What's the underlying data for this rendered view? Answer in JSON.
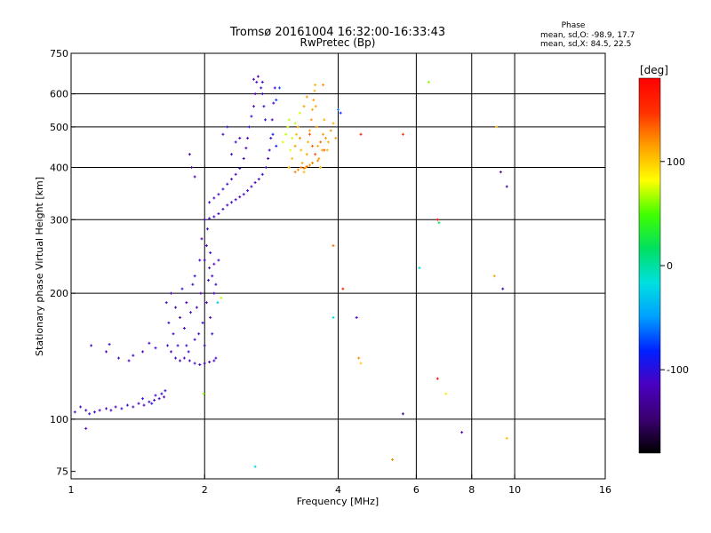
{
  "chart_data": {
    "type": "scatter",
    "title": "Tromsø 20161004 16:32:00-16:33:43",
    "subtitle": "RwPretec (Bp)",
    "xlabel": "Frequency [MHz]",
    "ylabel": "Stationary phase Virtual Height [km]",
    "x_scale": "log",
    "y_scale": "log",
    "xlim": [
      1,
      16
    ],
    "ylim": [
      72,
      750
    ],
    "x_ticks": [
      1,
      2,
      4,
      6,
      8,
      10,
      16
    ],
    "y_ticks": [
      75,
      100,
      200,
      300,
      400,
      500,
      600,
      750
    ],
    "grid_x": [
      1,
      2,
      4,
      6,
      8,
      10
    ],
    "grid_y": [
      100,
      200,
      300,
      400,
      500,
      600
    ],
    "grid": true,
    "stats": {
      "title": "Phase",
      "o_line": "mean, sd,O: -98.9, 17.7",
      "x_line": "mean, sd,X:  84.5, 22.5"
    },
    "colorbar": {
      "label": "[deg]",
      "range": [
        -180,
        180
      ],
      "ticks": [
        100,
        0,
        -100
      ],
      "colors": [
        "#000000",
        "#3a0070",
        "#4b00c0",
        "#0020ff",
        "#00a0ff",
        "#00e0e0",
        "#00e060",
        "#40ff00",
        "#ffff00",
        "#ffa000",
        "#ff3000",
        "#ff0000"
      ]
    },
    "series": [
      {
        "points": [
          [
            1.02,
            104,
            -115
          ],
          [
            1.05,
            107,
            -110
          ],
          [
            1.08,
            105,
            -120
          ],
          [
            1.1,
            103,
            -105
          ],
          [
            1.13,
            104,
            -112
          ],
          [
            1.16,
            105,
            -118
          ],
          [
            1.2,
            106,
            -108
          ],
          [
            1.23,
            105,
            -115
          ],
          [
            1.26,
            107,
            -120
          ],
          [
            1.3,
            106,
            -110
          ],
          [
            1.34,
            108,
            -105
          ],
          [
            1.38,
            107,
            -115
          ],
          [
            1.42,
            109,
            -112
          ],
          [
            1.46,
            108,
            -118
          ],
          [
            1.5,
            110,
            -108
          ],
          [
            1.54,
            111,
            -115
          ],
          [
            1.58,
            112,
            -110
          ],
          [
            1.62,
            113,
            -120
          ],
          [
            1.55,
            114,
            -112
          ],
          [
            1.6,
            115,
            -105
          ],
          [
            1.63,
            117,
            -100
          ],
          [
            1.08,
            95,
            -115
          ],
          [
            1.45,
            112,
            -102
          ],
          [
            1.52,
            109,
            -100
          ],
          [
            1.11,
            150,
            -110
          ],
          [
            1.2,
            145,
            -115
          ],
          [
            1.22,
            151,
            -108
          ],
          [
            1.28,
            140,
            -112
          ],
          [
            1.35,
            138,
            -118
          ],
          [
            1.38,
            142,
            -110
          ],
          [
            1.45,
            145,
            -115
          ],
          [
            1.5,
            152,
            -108
          ],
          [
            1.55,
            148,
            -112
          ],
          [
            1.64,
            190,
            -110
          ],
          [
            1.66,
            170,
            -108
          ],
          [
            1.68,
            200,
            -115
          ],
          [
            1.7,
            160,
            -112
          ],
          [
            1.72,
            185,
            -120
          ],
          [
            1.74,
            150,
            -110
          ],
          [
            1.76,
            175,
            -115
          ],
          [
            1.78,
            205,
            -108
          ],
          [
            1.8,
            165,
            -112
          ],
          [
            1.82,
            190,
            -118
          ],
          [
            1.84,
            145,
            -110
          ],
          [
            1.86,
            180,
            -115
          ],
          [
            1.88,
            210,
            -108
          ],
          [
            1.9,
            155,
            -112
          ],
          [
            1.92,
            185,
            -118
          ],
          [
            1.94,
            160,
            -110
          ],
          [
            1.96,
            200,
            -115
          ],
          [
            1.98,
            170,
            -108
          ],
          [
            2.0,
            150,
            -112
          ],
          [
            2.02,
            190,
            -118
          ],
          [
            2.04,
            215,
            -110
          ],
          [
            2.06,
            175,
            -115
          ],
          [
            2.08,
            160,
            -108
          ],
          [
            2.1,
            200,
            -112
          ],
          [
            2.12,
            140,
            -110
          ],
          [
            2.05,
            230,
            -115
          ],
          [
            2.0,
            240,
            -108
          ],
          [
            2.02,
            260,
            -112
          ],
          [
            1.97,
            270,
            -120
          ],
          [
            2.03,
            285,
            -110
          ],
          [
            1.95,
            240,
            -115
          ],
          [
            1.9,
            220,
            -108
          ],
          [
            1.85,
            138,
            -112
          ],
          [
            1.9,
            136,
            -108
          ],
          [
            1.95,
            135,
            -115
          ],
          [
            2.0,
            136,
            -110
          ],
          [
            2.05,
            137,
            -112
          ],
          [
            2.1,
            138,
            -115
          ],
          [
            1.99,
            115,
            60
          ],
          [
            2.14,
            190,
            -30
          ],
          [
            2.18,
            195,
            70
          ],
          [
            2.0,
            300,
            -112
          ],
          [
            2.05,
            302,
            -108
          ],
          [
            2.1,
            305,
            -115
          ],
          [
            2.15,
            310,
            -112
          ],
          [
            2.2,
            318,
            -110
          ],
          [
            2.25,
            325,
            -115
          ],
          [
            2.3,
            330,
            -108
          ],
          [
            2.35,
            335,
            -112
          ],
          [
            2.4,
            340,
            -118
          ],
          [
            2.45,
            345,
            -110
          ],
          [
            2.5,
            352,
            -108
          ],
          [
            2.55,
            360,
            -112
          ],
          [
            2.6,
            368,
            -115
          ],
          [
            2.65,
            375,
            -110
          ],
          [
            2.7,
            385,
            -108
          ],
          [
            2.75,
            400,
            -112
          ],
          [
            2.78,
            420,
            -115
          ],
          [
            2.8,
            440,
            -110
          ],
          [
            2.82,
            470,
            -108
          ],
          [
            2.84,
            520,
            -112
          ],
          [
            2.86,
            570,
            -115
          ],
          [
            2.88,
            620,
            -110
          ],
          [
            2.05,
            330,
            -110
          ],
          [
            2.1,
            338,
            -115
          ],
          [
            2.15,
            345,
            -112
          ],
          [
            2.2,
            355,
            -108
          ],
          [
            2.25,
            365,
            -110
          ],
          [
            2.3,
            375,
            -115
          ],
          [
            2.35,
            385,
            -112
          ],
          [
            2.4,
            398,
            -108
          ],
          [
            2.45,
            420,
            -110
          ],
          [
            2.48,
            445,
            -115
          ],
          [
            2.5,
            470,
            -112
          ],
          [
            2.52,
            500,
            -108
          ],
          [
            2.55,
            530,
            -110
          ],
          [
            2.58,
            560,
            -115
          ],
          [
            2.6,
            600,
            -112
          ],
          [
            2.62,
            640,
            -108
          ],
          [
            2.64,
            660,
            -110
          ],
          [
            2.58,
            650,
            -115
          ],
          [
            2.7,
            600,
            -110
          ],
          [
            2.72,
            560,
            -105
          ],
          [
            2.74,
            520,
            -95
          ],
          [
            2.85,
            480,
            -90
          ],
          [
            2.9,
            450,
            -85
          ],
          [
            2.7,
            640,
            -112
          ],
          [
            2.68,
            620,
            -108
          ],
          [
            2.95,
            620,
            -70
          ],
          [
            2.9,
            580,
            -75
          ],
          [
            1.85,
            430,
            -130
          ],
          [
            1.87,
            400,
            -125
          ],
          [
            1.9,
            380,
            -120
          ],
          [
            2.3,
            430,
            -110
          ],
          [
            2.35,
            460,
            -108
          ],
          [
            2.2,
            480,
            -112
          ],
          [
            2.25,
            500,
            -108
          ],
          [
            2.4,
            470,
            -112
          ],
          [
            3.1,
            400,
            110
          ],
          [
            3.15,
            420,
            105
          ],
          [
            3.2,
            450,
            115
          ],
          [
            3.22,
            480,
            108
          ],
          [
            3.25,
            500,
            112
          ],
          [
            3.28,
            470,
            118
          ],
          [
            3.3,
            440,
            108
          ],
          [
            3.32,
            410,
            112
          ],
          [
            3.35,
            390,
            105
          ],
          [
            3.38,
            400,
            110
          ],
          [
            3.4,
            430,
            115
          ],
          [
            3.42,
            460,
            108
          ],
          [
            3.45,
            490,
            112
          ],
          [
            3.48,
            520,
            118
          ],
          [
            3.5,
            550,
            110
          ],
          [
            3.52,
            580,
            115
          ],
          [
            3.54,
            610,
            108
          ],
          [
            3.56,
            560,
            112
          ],
          [
            3.58,
            500,
            118
          ],
          [
            3.6,
            450,
            110
          ],
          [
            3.62,
            420,
            115
          ],
          [
            3.65,
            400,
            108
          ],
          [
            3.68,
            440,
            112
          ],
          [
            3.7,
            480,
            118
          ],
          [
            3.72,
            520,
            110
          ],
          [
            3.75,
            470,
            115
          ],
          [
            3.78,
            440,
            108
          ],
          [
            3.8,
            460,
            112
          ],
          [
            3.85,
            490,
            118
          ],
          [
            3.9,
            510,
            110
          ],
          [
            3.95,
            470,
            115
          ],
          [
            3.0,
            460,
            75
          ],
          [
            3.05,
            480,
            70
          ],
          [
            3.08,
            500,
            72
          ],
          [
            3.1,
            520,
            68
          ],
          [
            3.12,
            440,
            78
          ],
          [
            3.15,
            470,
            72
          ],
          [
            3.2,
            510,
            70
          ],
          [
            3.28,
            540,
            75
          ],
          [
            3.35,
            560,
            115
          ],
          [
            3.4,
            590,
            118
          ],
          [
            3.55,
            630,
            110
          ],
          [
            3.7,
            630,
            120
          ],
          [
            3.3,
            400,
            130
          ],
          [
            3.35,
            398,
            125
          ],
          [
            3.4,
            402,
            128
          ],
          [
            3.45,
            405,
            122
          ],
          [
            3.5,
            410,
            126
          ],
          [
            3.6,
            415,
            124
          ],
          [
            3.25,
            395,
            120
          ],
          [
            3.2,
            390,
            125
          ],
          [
            3.45,
            480,
            140
          ],
          [
            3.5,
            450,
            135
          ],
          [
            3.55,
            430,
            138
          ],
          [
            3.65,
            460,
            132
          ],
          [
            3.72,
            440,
            136
          ],
          [
            4.0,
            550,
            -60
          ],
          [
            4.05,
            540,
            -80
          ],
          [
            4.5,
            480,
            165
          ],
          [
            5.6,
            480,
            150
          ],
          [
            6.7,
            300,
            170
          ],
          [
            6.75,
            295,
            20
          ],
          [
            9.1,
            500,
            105
          ],
          [
            9.3,
            390,
            -130
          ],
          [
            9.6,
            360,
            -125
          ],
          [
            9.4,
            205,
            -120
          ],
          [
            9.0,
            220,
            115
          ],
          [
            6.4,
            640,
            60
          ],
          [
            3.9,
            260,
            130
          ],
          [
            4.1,
            205,
            160
          ],
          [
            6.1,
            230,
            -20
          ],
          [
            4.4,
            175,
            -115
          ],
          [
            3.9,
            175,
            -20
          ],
          [
            4.45,
            140,
            120
          ],
          [
            4.5,
            136,
            100
          ],
          [
            6.7,
            125,
            165
          ],
          [
            7.0,
            115,
            90
          ],
          [
            5.6,
            103,
            -130
          ],
          [
            7.6,
            93,
            -125
          ],
          [
            9.6,
            90,
            105
          ],
          [
            5.3,
            80,
            120
          ],
          [
            2.6,
            77,
            -20
          ],
          [
            1.65,
            150,
            -110
          ],
          [
            1.68,
            145,
            -115
          ],
          [
            1.72,
            140,
            -108
          ],
          [
            1.76,
            138,
            -112
          ],
          [
            1.8,
            140,
            -115
          ],
          [
            1.82,
            150,
            -108
          ],
          [
            2.08,
            220,
            -110
          ],
          [
            2.1,
            235,
            -115
          ],
          [
            2.12,
            210,
            -108
          ],
          [
            2.15,
            240,
            -112
          ],
          [
            2.06,
            250,
            -108
          ]
        ]
      }
    ]
  }
}
